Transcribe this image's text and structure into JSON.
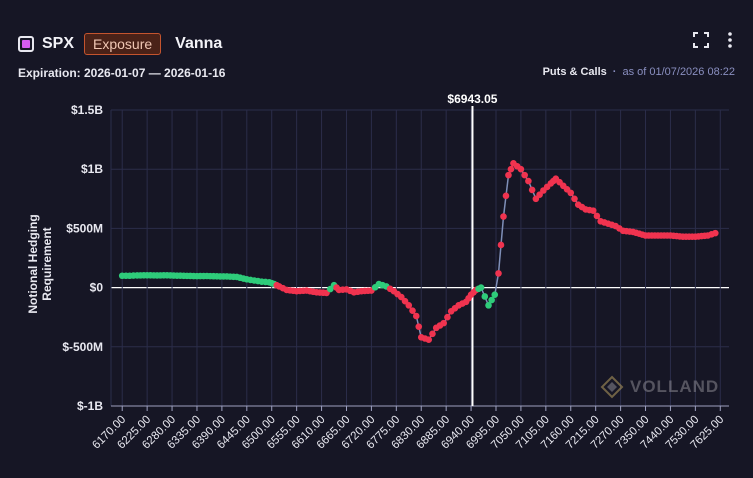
{
  "header": {
    "ticker": "SPX",
    "badge": "Exposure",
    "mode": "Vanna",
    "expiration": "Expiration: 2026-01-07 — 2026-01-16",
    "scope": "Puts & Calls",
    "as_of": "as of 01/07/2026 08:22",
    "accent_color": "#d55bf0"
  },
  "icons": {
    "fullscreen": "fullscreen-icon",
    "menu": "kebab-menu-icon"
  },
  "watermark": {
    "text": "VOLLAND"
  },
  "chart_data": {
    "type": "scatter",
    "title": "",
    "ylabel": "Notional Hedging Requirement",
    "xlabel": "",
    "spot_label": "$6943.05",
    "spot_value": 6943.05,
    "ylim": [
      -1000,
      1500
    ],
    "y_ticks": [
      {
        "value": 1500,
        "label": "$1.5B"
      },
      {
        "value": 1000,
        "label": "$1B"
      },
      {
        "value": 500,
        "label": "$500M"
      },
      {
        "value": 0,
        "label": "$0"
      },
      {
        "value": -500,
        "label": "$-500M"
      },
      {
        "value": -1000,
        "label": "$-1B"
      }
    ],
    "x_ticks": [
      "6170.00",
      "6225.00",
      "6280.00",
      "6335.00",
      "6390.00",
      "6445.00",
      "6500.00",
      "6555.00",
      "6610.00",
      "6665.00",
      "6720.00",
      "6775.00",
      "6830.00",
      "6885.00",
      "6940.00",
      "6995.00",
      "7050.00",
      "7105.00",
      "7160.00",
      "7215.00",
      "7270.00",
      "7350.00",
      "7440.00",
      "7530.00",
      "7625.00"
    ],
    "colors": {
      "positive": "#2ecc7a",
      "negative": "#f0334f",
      "line": "#7f8fb8",
      "grid": "#2b2d4a",
      "spot": "#ffffff"
    },
    "series": [
      {
        "x": 0,
        "y": 100,
        "c": "g"
      },
      {
        "x": 0.3,
        "y": 100,
        "c": "g"
      },
      {
        "x": 0.6,
        "y": 103,
        "c": "g"
      },
      {
        "x": 1,
        "y": 104,
        "c": "g"
      },
      {
        "x": 1.4,
        "y": 103,
        "c": "g"
      },
      {
        "x": 1.8,
        "y": 104,
        "c": "g"
      },
      {
        "x": 2.2,
        "y": 101,
        "c": "g"
      },
      {
        "x": 2.6,
        "y": 99,
        "c": "g"
      },
      {
        "x": 3,
        "y": 97,
        "c": "g"
      },
      {
        "x": 3.4,
        "y": 98,
        "c": "g"
      },
      {
        "x": 3.8,
        "y": 95,
        "c": "g"
      },
      {
        "x": 4.2,
        "y": 94,
        "c": "g"
      },
      {
        "x": 4.6,
        "y": 90,
        "c": "g"
      },
      {
        "x": 5,
        "y": 70,
        "c": "g"
      },
      {
        "x": 5.3,
        "y": 60,
        "c": "g"
      },
      {
        "x": 5.6,
        "y": 50,
        "c": "g"
      },
      {
        "x": 5.9,
        "y": 45,
        "c": "g"
      },
      {
        "x": 6.1,
        "y": 30,
        "c": "g"
      },
      {
        "x": 6.3,
        "y": 10,
        "c": "r"
      },
      {
        "x": 6.6,
        "y": -20,
        "c": "r"
      },
      {
        "x": 7,
        "y": -30,
        "c": "r"
      },
      {
        "x": 7.4,
        "y": -25,
        "c": "r"
      },
      {
        "x": 7.8,
        "y": -40,
        "c": "r"
      },
      {
        "x": 8.2,
        "y": -45,
        "c": "r"
      },
      {
        "x": 8.5,
        "y": 20,
        "c": "g"
      },
      {
        "x": 8.7,
        "y": -20,
        "c": "r"
      },
      {
        "x": 9,
        "y": -15,
        "c": "r"
      },
      {
        "x": 9.3,
        "y": -40,
        "c": "r"
      },
      {
        "x": 9.6,
        "y": -30,
        "c": "r"
      },
      {
        "x": 10,
        "y": -25,
        "c": "r"
      },
      {
        "x": 10.3,
        "y": 30,
        "c": "g"
      },
      {
        "x": 10.6,
        "y": 10,
        "c": "g"
      },
      {
        "x": 10.9,
        "y": -30,
        "c": "r"
      },
      {
        "x": 11.2,
        "y": -80,
        "c": "r"
      },
      {
        "x": 11.5,
        "y": -150,
        "c": "r"
      },
      {
        "x": 11.8,
        "y": -240,
        "c": "r"
      },
      {
        "x": 12,
        "y": -420,
        "c": "r"
      },
      {
        "x": 12.3,
        "y": -440,
        "c": "r"
      },
      {
        "x": 12.6,
        "y": -340,
        "c": "r"
      },
      {
        "x": 12.9,
        "y": -300,
        "c": "r"
      },
      {
        "x": 13.2,
        "y": -200,
        "c": "r"
      },
      {
        "x": 13.5,
        "y": -150,
        "c": "r"
      },
      {
        "x": 13.8,
        "y": -120,
        "c": "r"
      },
      {
        "x": 14,
        "y": -60,
        "c": "r"
      },
      {
        "x": 14.2,
        "y": -20,
        "c": "r"
      },
      {
        "x": 14.4,
        "y": 0,
        "c": "g"
      },
      {
        "x": 14.7,
        "y": -150,
        "c": "g"
      },
      {
        "x": 14.95,
        "y": -60,
        "c": "g"
      },
      {
        "x": 15.1,
        "y": 120,
        "c": "r"
      },
      {
        "x": 15.3,
        "y": 600,
        "c": "r"
      },
      {
        "x": 15.5,
        "y": 950,
        "c": "r"
      },
      {
        "x": 15.7,
        "y": 1050,
        "c": "r"
      },
      {
        "x": 16,
        "y": 1000,
        "c": "r"
      },
      {
        "x": 16.3,
        "y": 900,
        "c": "r"
      },
      {
        "x": 16.6,
        "y": 750,
        "c": "r"
      },
      {
        "x": 16.9,
        "y": 820,
        "c": "r"
      },
      {
        "x": 17.2,
        "y": 880,
        "c": "r"
      },
      {
        "x": 17.4,
        "y": 920,
        "c": "r"
      },
      {
        "x": 17.7,
        "y": 860,
        "c": "r"
      },
      {
        "x": 18,
        "y": 800,
        "c": "r"
      },
      {
        "x": 18.3,
        "y": 700,
        "c": "r"
      },
      {
        "x": 18.6,
        "y": 660,
        "c": "r"
      },
      {
        "x": 18.9,
        "y": 650,
        "c": "r"
      },
      {
        "x": 19.2,
        "y": 560,
        "c": "r"
      },
      {
        "x": 19.5,
        "y": 540,
        "c": "r"
      },
      {
        "x": 19.8,
        "y": 520,
        "c": "r"
      },
      {
        "x": 20.1,
        "y": 480,
        "c": "r"
      },
      {
        "x": 20.5,
        "y": 470,
        "c": "r"
      },
      {
        "x": 21,
        "y": 440,
        "c": "r"
      },
      {
        "x": 21.5,
        "y": 440,
        "c": "r"
      },
      {
        "x": 22,
        "y": 440,
        "c": "r"
      },
      {
        "x": 22.5,
        "y": 430,
        "c": "r"
      },
      {
        "x": 23,
        "y": 430,
        "c": "r"
      },
      {
        "x": 23.5,
        "y": 440,
        "c": "r"
      },
      {
        "x": 23.8,
        "y": 460,
        "c": "r"
      }
    ]
  }
}
